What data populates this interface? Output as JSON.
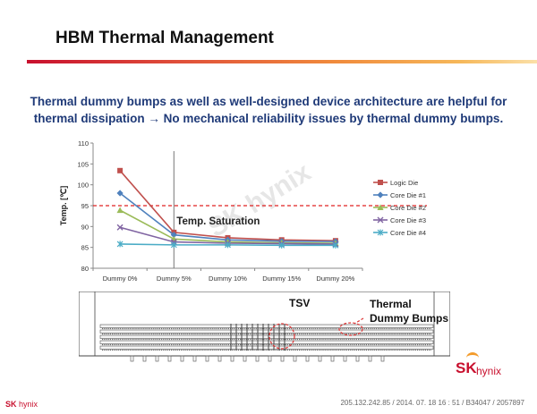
{
  "header": {
    "title": "HBM Thermal Management",
    "subtitle_line1": "Thermal dummy bumps as well as well-designed device architecture are helpful for",
    "subtitle_line2": "thermal dissipation → No mechanical reliability issues by thermal dummy bumps."
  },
  "chart_data": {
    "type": "line",
    "ylabel": "Temp. [℃]",
    "ylim": [
      80,
      110
    ],
    "yticks": [
      80,
      85,
      90,
      95,
      100,
      105,
      110
    ],
    "categories": [
      "Dummy 0%",
      "Dummy 5%",
      "Dummy 10%",
      "Dummy 15%",
      "Dummy 20%"
    ],
    "reference_line": 95,
    "annotation": "Temp. Saturation",
    "annotation_at_category": "Dummy 5%",
    "watermark": "SK hynix",
    "legend_position": "right",
    "series": [
      {
        "name": "Logic Die",
        "color": "#c0504d",
        "marker": "square",
        "values": [
          103.4,
          88.6,
          87.3,
          86.8,
          86.6
        ]
      },
      {
        "name": "Core Die #1",
        "color": "#4f81bd",
        "marker": "diamond",
        "values": [
          98.0,
          88.0,
          86.8,
          86.5,
          86.4
        ]
      },
      {
        "name": "Core Die #2",
        "color": "#9bbb59",
        "marker": "triangle",
        "values": [
          93.9,
          87.0,
          86.3,
          86.1,
          86.0
        ]
      },
      {
        "name": "Core Die #3",
        "color": "#8064a2",
        "marker": "x",
        "values": [
          89.8,
          86.3,
          86.0,
          85.9,
          85.8
        ]
      },
      {
        "name": "Core Die #4",
        "color": "#4bacc6",
        "marker": "star",
        "values": [
          85.8,
          85.6,
          85.6,
          85.5,
          85.5
        ]
      }
    ]
  },
  "diagram": {
    "tsv_label": "TSV",
    "thermal_label_line1": "Thermal",
    "thermal_label_line2": "Dummy Bumps"
  },
  "branding": {
    "logo_sk": "SK",
    "logo_hynix": "hynix",
    "footer_logo_sk": "SK",
    "footer_logo_hynix": "hynix",
    "footer_text": "205.132.242.85 / 2014. 07. 18  16 : 51 / B34047 / 2057897"
  }
}
